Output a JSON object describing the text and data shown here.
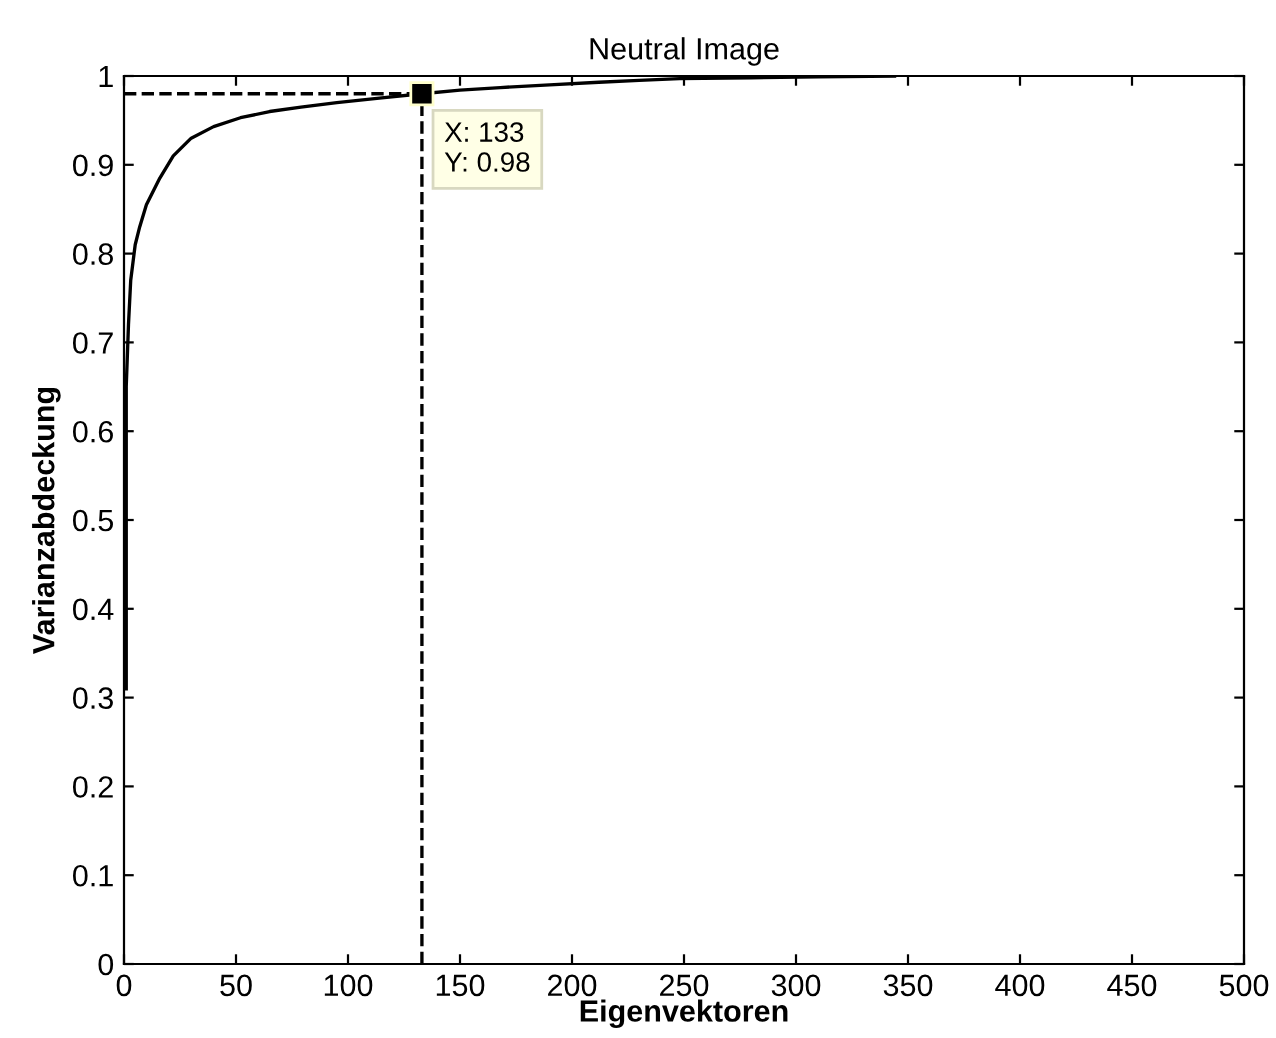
{
  "chart_data": {
    "type": "line",
    "title": "Neutral Image",
    "xlabel": "Eigenvektoren",
    "ylabel": "Varianzabdeckung",
    "series": [
      {
        "color": "#000000",
        "x": [
          1,
          1,
          2,
          3,
          5,
          7,
          10,
          16,
          22,
          30,
          40,
          52,
          65,
          79,
          95,
          114,
          133,
          150,
          168,
          190,
          212,
          230,
          248,
          280,
          310,
          344
        ],
        "values": [
          0.31,
          0.65,
          0.72,
          0.77,
          0.81,
          0.83,
          0.855,
          0.885,
          0.91,
          0.93,
          0.943,
          0.953,
          0.96,
          0.965,
          0.97,
          0.975,
          0.98,
          0.984,
          0.987,
          0.99,
          0.993,
          0.995,
          0.997,
          0.998,
          0.999,
          1.0
        ]
      }
    ],
    "xlim": [
      0,
      500
    ],
    "ylim": [
      0,
      1
    ],
    "xticks": [
      0,
      50,
      100,
      150,
      200,
      250,
      300,
      350,
      400,
      450,
      500
    ],
    "yticks": [
      0,
      0.1,
      0.2,
      0.3,
      0.4,
      0.5,
      0.6,
      0.7,
      0.8,
      0.9,
      1
    ],
    "ref_lines": [
      {
        "axis": "x",
        "value": 133,
        "color": "#000000",
        "line_style": "dashed"
      },
      {
        "axis": "y",
        "value": 0.98,
        "color": "#000000",
        "line_style": "dashed"
      }
    ],
    "annotations": [
      {
        "text": "X: 133\nY: 0.98",
        "x": 133,
        "y": 0.98
      }
    ],
    "grid": false,
    "legend": false,
    "marker": "none",
    "line_style": "solid"
  }
}
